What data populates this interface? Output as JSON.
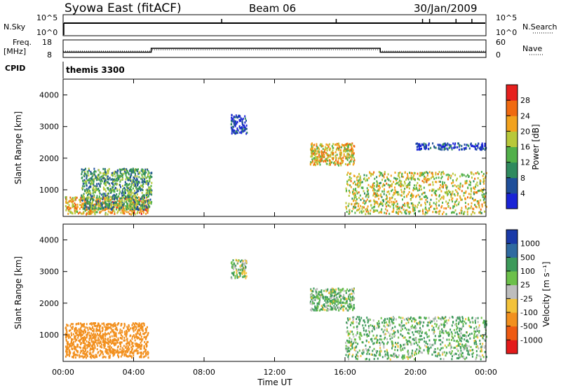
{
  "header": {
    "station": "Syowa East (fitACF)",
    "beam": "Beam 06",
    "date": "30/Jan/2009"
  },
  "noise_panel": {
    "left_label": "N.Sky",
    "left_ticks": [
      "10^5",
      "10^0"
    ],
    "right_label": "N.Search",
    "right_ticks": [
      "10^5",
      "10^0"
    ]
  },
  "freq_panel": {
    "left_label_1": "Freq.",
    "left_label_2": "[MHz]",
    "left_ticks": [
      "18",
      "8"
    ],
    "right_label": "Nave",
    "right_ticks": [
      "60",
      "0"
    ]
  },
  "cpid": {
    "label": "CPID",
    "value": "themis 3300"
  },
  "x_axis": {
    "label": "Time UT",
    "ticks": [
      "00:00",
      "04:00",
      "08:00",
      "12:00",
      "16:00",
      "20:00",
      "00:00"
    ]
  },
  "power_panel": {
    "ylabel": "Slant Range [km]",
    "yticks": [
      "1000",
      "2000",
      "3000",
      "4000"
    ],
    "colorbar_label": "Power [dB]",
    "colorbar_ticks": [
      "4",
      "8",
      "12",
      "16",
      "20",
      "24",
      "28"
    ],
    "colors": [
      "#1a24d6",
      "#1f4f9a",
      "#2f8a5e",
      "#52b04a",
      "#b8c83a",
      "#f2a21e",
      "#f06a10",
      "#e6201e"
    ]
  },
  "velocity_panel": {
    "ylabel": "Slant Range [km]",
    "yticks": [
      "1000",
      "2000",
      "3000",
      "4000"
    ],
    "colorbar_label": "Velocity [m s⁻¹]",
    "colorbar_ticks": [
      "1000",
      "500",
      "100",
      "25",
      "-25",
      "-100",
      "-500",
      "-1000"
    ],
    "colors": [
      "#1a3aa8",
      "#2f6aa0",
      "#3c9a5a",
      "#6cc04a",
      "#bdbdbd",
      "#f3c23a",
      "#f2901e",
      "#ee5a12",
      "#e41a1a"
    ]
  },
  "chart_data": [
    {
      "type": "line",
      "title": "N.Sky / N.Search",
      "x": [
        0,
        24
      ],
      "y_scale": "log",
      "ylim": [
        1,
        100000
      ],
      "series": [
        {
          "name": "N.Sky",
          "values": [
            10000,
            10000
          ]
        }
      ]
    },
    {
      "type": "line",
      "title": "Freq. [MHz] / Nave",
      "xlim": [
        0,
        24
      ],
      "series": [
        {
          "name": "Freq. [MHz]",
          "x": [
            0,
            5,
            5,
            18,
            18,
            24
          ],
          "values": [
            10.8,
            10.8,
            13.2,
            13.2,
            10.8,
            10.8
          ]
        },
        {
          "name": "Nave",
          "x": [
            0,
            5,
            5,
            18,
            18,
            24
          ],
          "values": [
            21,
            21,
            26,
            26,
            21,
            21
          ]
        }
      ]
    },
    {
      "type": "heatmap",
      "title": "Power [dB]",
      "x_unit": "hours UT",
      "xlim": [
        0,
        24
      ],
      "ylim": [
        180,
        4500
      ],
      "regions": [
        {
          "t": [
            0.1,
            4.8
          ],
          "r": [
            250,
            800
          ],
          "power": 22
        },
        {
          "t": [
            1.0,
            5.0
          ],
          "r": [
            400,
            1700
          ],
          "power": 12
        },
        {
          "t": [
            9.5,
            10.4
          ],
          "r": [
            2800,
            3400
          ],
          "power": 4
        },
        {
          "t": [
            14.0,
            16.5
          ],
          "r": [
            1800,
            2500
          ],
          "power": 20
        },
        {
          "t": [
            16.0,
            24.0
          ],
          "r": [
            250,
            1600
          ],
          "power": 18
        },
        {
          "t": [
            20.0,
            24.0
          ],
          "r": [
            2300,
            2500
          ],
          "power": 4
        }
      ]
    },
    {
      "type": "heatmap",
      "title": "Velocity [m s⁻¹]",
      "x_unit": "hours UT",
      "xlim": [
        0,
        24
      ],
      "ylim": [
        180,
        4500
      ],
      "regions": [
        {
          "t": [
            0.1,
            4.8
          ],
          "r": [
            300,
            1400
          ],
          "velocity": -300
        },
        {
          "t": [
            9.5,
            10.4
          ],
          "r": [
            2800,
            3400
          ],
          "velocity": 50
        },
        {
          "t": [
            14.0,
            16.5
          ],
          "r": [
            1800,
            2500
          ],
          "velocity": 100
        },
        {
          "t": [
            16.0,
            24.0
          ],
          "r": [
            250,
            1600
          ],
          "velocity": 100
        }
      ]
    }
  ]
}
